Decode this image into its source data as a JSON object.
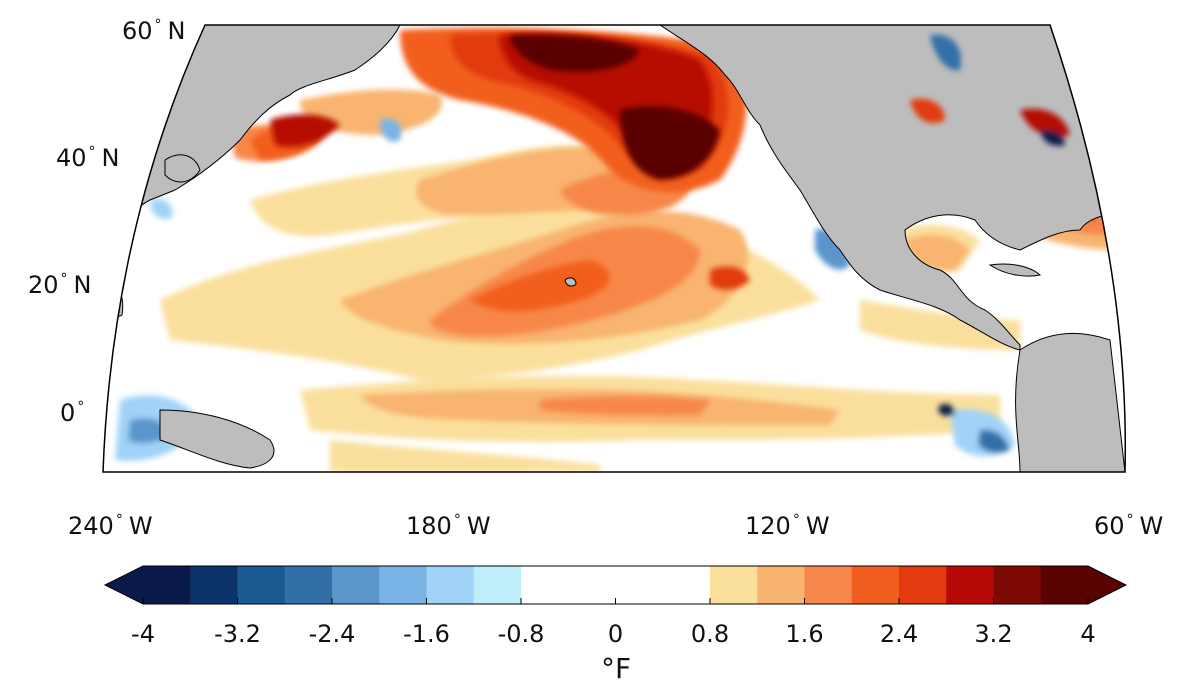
{
  "map": {
    "latitude_labels": [
      {
        "value": "60",
        "hemisphere": "N"
      },
      {
        "value": "40",
        "hemisphere": "N"
      },
      {
        "value": "20",
        "hemisphere": "N"
      },
      {
        "value": "0",
        "hemisphere": ""
      }
    ],
    "longitude_labels": [
      {
        "value": "240",
        "hemisphere": "W"
      },
      {
        "value": "180",
        "hemisphere": "W"
      },
      {
        "value": "120",
        "hemisphere": "W"
      },
      {
        "value": "60",
        "hemisphere": "W"
      }
    ],
    "colors": {
      "land": "#bdbdbd",
      "ocean_neutral": "#ffffff",
      "coastline": "#000000"
    }
  },
  "colorbar": {
    "tick_labels": [
      "-4",
      "-3.2",
      "-2.4",
      "-1.6",
      "-0.8",
      "0",
      "0.8",
      "1.6",
      "2.4",
      "3.2",
      "4"
    ],
    "units": "°F",
    "colors": [
      "#0a1a4a",
      "#0d336b",
      "#1b5a92",
      "#336fa7",
      "#5a95cc",
      "#7ab4e6",
      "#a0d3f7",
      "#bfeefa",
      "#ffffff",
      "#ffffff",
      "#ffffff",
      "#ffffff",
      "#fadf9c",
      "#f8b46f",
      "#f7874a",
      "#f25e1e",
      "#e23b0f",
      "#b60a06",
      "#7e0a06",
      "#5a0303"
    ]
  }
}
